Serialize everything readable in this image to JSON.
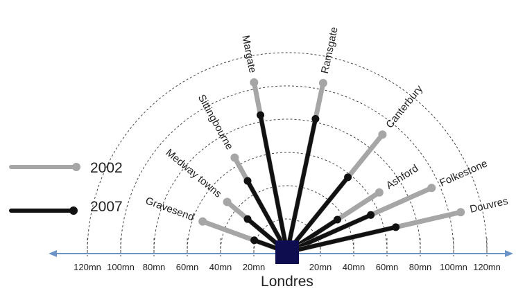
{
  "legend": [
    {
      "label": "2002",
      "color": "#a6a6a6"
    },
    {
      "label": "2007",
      "color": "#111111"
    }
  ],
  "hub": {
    "label": "Londres",
    "color": "#0d0d4f"
  },
  "axis": {
    "color": "#6b93c7",
    "left_ticks": [
      "120mn",
      "100mn",
      "80mn",
      "60mn",
      "40mn",
      "20mn"
    ],
    "right_ticks": [
      "20mn",
      "40mn",
      "60mn",
      "80mn",
      "100mn",
      "120mn"
    ],
    "arc_minutes": [
      20,
      40,
      60,
      80,
      100,
      120
    ]
  },
  "destinations": [
    {
      "name": "Gravesend",
      "angle_deg": 160,
      "t2002_min": 54,
      "t2007_min": 21
    },
    {
      "name": "Medway towns",
      "angle_deg": 140,
      "t2002_min": 47,
      "t2007_min": 31
    },
    {
      "name": "Sittingbourne",
      "angle_deg": 119,
      "t2002_min": 65,
      "t2007_min": 49
    },
    {
      "name": "Margate",
      "angle_deg": 101,
      "t2002_min": 104,
      "t2007_min": 84
    },
    {
      "name": "Ramsgate",
      "angle_deg": 78,
      "t2002_min": 104,
      "t2007_min": 82
    },
    {
      "name": "Canterbury",
      "angle_deg": 51,
      "t2002_min": 91,
      "t2007_min": 58
    },
    {
      "name": "Ashford",
      "angle_deg": 33,
      "t2002_min": 66,
      "t2007_min": 36
    },
    {
      "name": "Folkestone",
      "angle_deg": 24,
      "t2002_min": 95,
      "t2007_min": 55
    },
    {
      "name": "Douvres",
      "angle_deg": 13,
      "t2002_min": 107,
      "t2007_min": 67
    }
  ]
}
